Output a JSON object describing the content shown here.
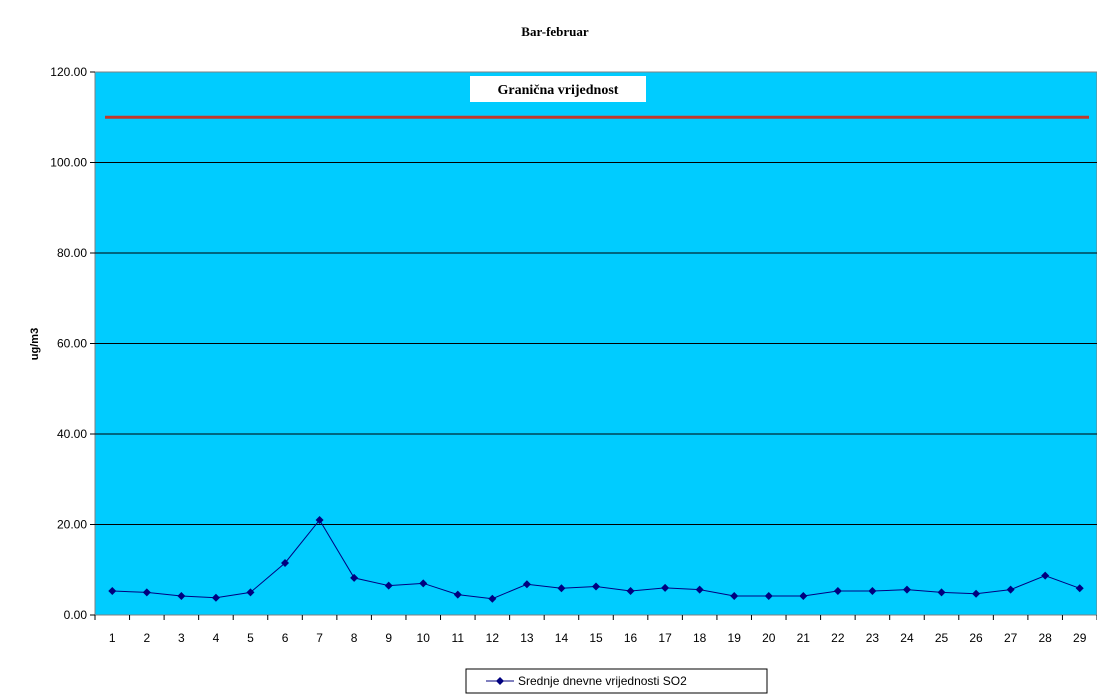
{
  "chart_data": {
    "type": "line",
    "title": "Bar-februar",
    "xlabel": "",
    "ylabel": "ug/m3",
    "ylim": [
      0,
      120
    ],
    "yticks": [
      "0.00",
      "20.00",
      "40.00",
      "60.00",
      "80.00",
      "100.00",
      "120.00"
    ],
    "categories": [
      "1",
      "2",
      "3",
      "4",
      "5",
      "6",
      "7",
      "8",
      "9",
      "10",
      "11",
      "12",
      "13",
      "14",
      "15",
      "16",
      "17",
      "18",
      "19",
      "20",
      "21",
      "22",
      "23",
      "24",
      "25",
      "26",
      "27",
      "28",
      "29"
    ],
    "series": [
      {
        "name": "Srednje dnevne vrijednosti SO2",
        "values": [
          5.3,
          5.0,
          4.2,
          3.8,
          5.0,
          11.5,
          21.0,
          8.2,
          6.5,
          7.0,
          4.5,
          3.6,
          6.8,
          5.9,
          6.3,
          5.3,
          6.0,
          5.6,
          4.2,
          4.2,
          4.2,
          5.3,
          5.3,
          5.6,
          5.0,
          4.7,
          5.6,
          8.7,
          5.9
        ],
        "color": "#00007f"
      }
    ],
    "threshold": {
      "label": "Granična vrijednost",
      "value": 110,
      "color": "#c0392b"
    },
    "plot_background": "#00ccff",
    "grid": true,
    "legend_position": "bottom-center"
  }
}
